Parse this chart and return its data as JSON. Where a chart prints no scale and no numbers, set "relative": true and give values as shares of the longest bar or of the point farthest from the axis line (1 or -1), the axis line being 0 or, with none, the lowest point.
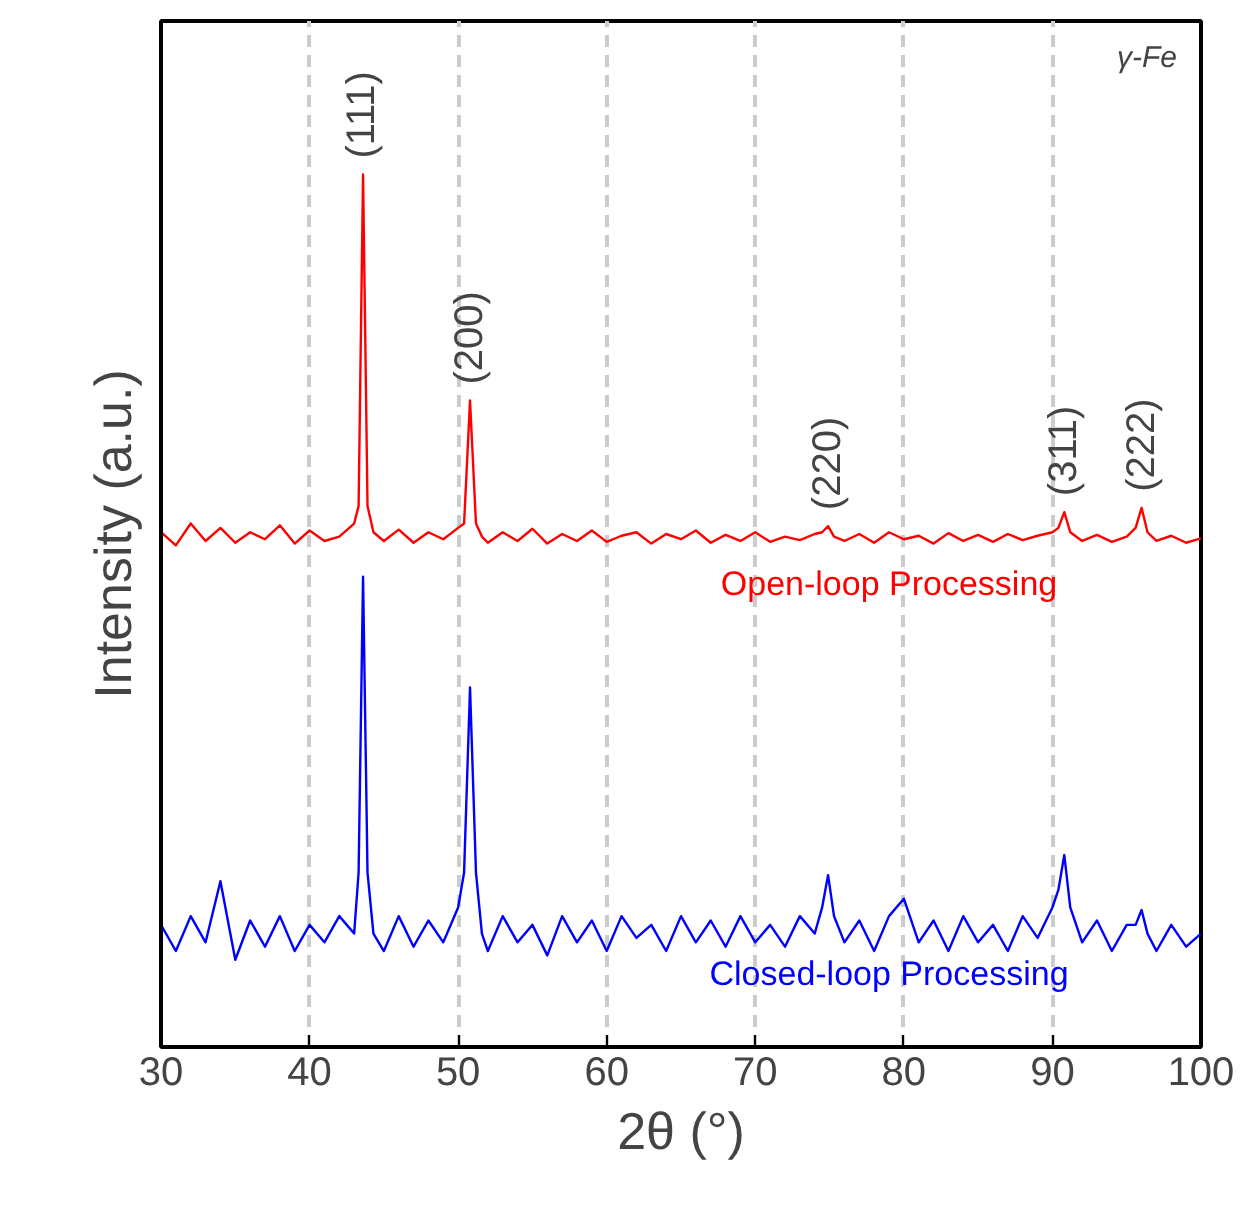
{
  "chart_data": {
    "type": "line",
    "relative": true,
    "xlabel": "2θ (°)",
    "ylabel": "Intensity (a.u.)",
    "xlim": [
      30,
      100
    ],
    "xticks": [
      30,
      40,
      50,
      60,
      70,
      80,
      90,
      100
    ],
    "grid": "x",
    "tick_labels": "x",
    "x": [
      30,
      31,
      32,
      33,
      34,
      35,
      36,
      37,
      38,
      39,
      40,
      41,
      42,
      43,
      43.3,
      43.6,
      43.9,
      44.3,
      45,
      46,
      47,
      48,
      49,
      50,
      50.4,
      50.8,
      51.2,
      51.6,
      52,
      53,
      54,
      55,
      56,
      57,
      58,
      59,
      60,
      61,
      62,
      63,
      64,
      65,
      66,
      67,
      68,
      69,
      70,
      71,
      72,
      73,
      74,
      74.5,
      74.9,
      75.3,
      76,
      77,
      78,
      79,
      80,
      81,
      82,
      83,
      84,
      85,
      86,
      87,
      88,
      89,
      90,
      90.4,
      90.8,
      91.2,
      92,
      93,
      94,
      95,
      95.6,
      96,
      96.4,
      97,
      98,
      99,
      100
    ],
    "series": [
      {
        "name": "Open-loop Processing",
        "color": "#ff0000",
        "values": [
          0.59,
          0.575,
          0.6,
          0.58,
          0.595,
          0.578,
          0.59,
          0.582,
          0.598,
          0.577,
          0.592,
          0.58,
          0.585,
          0.6,
          0.62,
          1.0,
          0.62,
          0.59,
          0.58,
          0.593,
          0.578,
          0.59,
          0.582,
          0.595,
          0.6,
          0.741,
          0.6,
          0.585,
          0.578,
          0.59,
          0.58,
          0.594,
          0.577,
          0.588,
          0.58,
          0.592,
          0.579,
          0.586,
          0.59,
          0.577,
          0.588,
          0.582,
          0.592,
          0.578,
          0.587,
          0.58,
          0.59,
          0.579,
          0.585,
          0.581,
          0.588,
          0.59,
          0.597,
          0.585,
          0.58,
          0.588,
          0.578,
          0.59,
          0.582,
          0.586,
          0.577,
          0.589,
          0.58,
          0.587,
          0.579,
          0.588,
          0.581,
          0.586,
          0.59,
          0.595,
          0.613,
          0.59,
          0.58,
          0.587,
          0.579,
          0.585,
          0.595,
          0.618,
          0.59,
          0.58,
          0.586,
          0.578,
          0.583
        ]
      },
      {
        "name": "Closed-loop Processing",
        "color": "#0000ff",
        "values": [
          0.14,
          0.11,
          0.15,
          0.12,
          0.19,
          0.1,
          0.145,
          0.115,
          0.15,
          0.11,
          0.14,
          0.12,
          0.15,
          0.13,
          0.2,
          0.539,
          0.2,
          0.13,
          0.11,
          0.15,
          0.115,
          0.145,
          0.12,
          0.16,
          0.2,
          0.412,
          0.2,
          0.13,
          0.11,
          0.15,
          0.12,
          0.14,
          0.105,
          0.15,
          0.12,
          0.145,
          0.11,
          0.15,
          0.125,
          0.14,
          0.11,
          0.15,
          0.12,
          0.145,
          0.115,
          0.15,
          0.12,
          0.14,
          0.115,
          0.15,
          0.13,
          0.16,
          0.197,
          0.15,
          0.12,
          0.145,
          0.11,
          0.15,
          0.17,
          0.12,
          0.145,
          0.11,
          0.15,
          0.12,
          0.14,
          0.11,
          0.15,
          0.125,
          0.16,
          0.18,
          0.22,
          0.16,
          0.12,
          0.145,
          0.11,
          0.14,
          0.14,
          0.157,
          0.13,
          0.11,
          0.14,
          0.115,
          0.13
        ]
      }
    ],
    "annotations": [
      "γ-Fe",
      {
        "text": "(111)",
        "x": 43.5,
        "y": 1.0
      },
      {
        "text": "(200)",
        "x": 50.8,
        "y": 0.741
      },
      {
        "text": "(220)",
        "x": 74.9,
        "y": 0.597
      },
      {
        "text": "(311)",
        "x": 90.8,
        "y": 0.613
      },
      {
        "text": "(222)",
        "x": 96,
        "y": 0.618
      }
    ]
  }
}
